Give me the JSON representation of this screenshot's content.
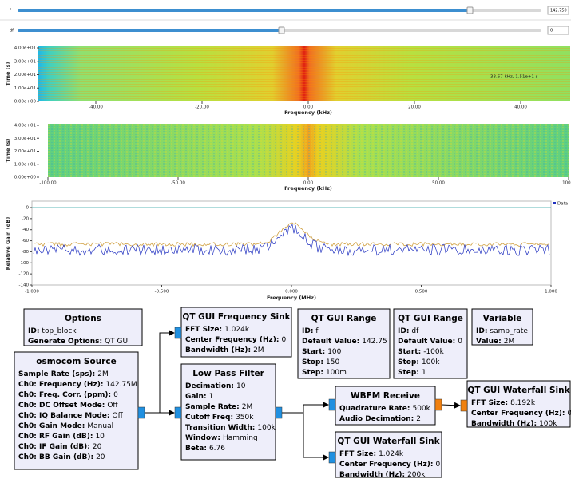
{
  "controls": [
    {
      "label": "f",
      "value": "142.750"
    },
    {
      "label": "df",
      "value": "0"
    }
  ],
  "waterfall_1": {
    "ylabel": "Time (s)",
    "xlabel": "Frequency (kHz)",
    "yticks": [
      "4.00e+01",
      "3.00e+01",
      "2.00e+01",
      "1.00e+01",
      "0.00e+00"
    ],
    "xticks": [
      "-40.00",
      "-20.00",
      "0.00",
      "20.00",
      "40.00"
    ],
    "annotation": "33.67 kHz, 1.51e+1 s"
  },
  "waterfall_2": {
    "ylabel": "Time (s)",
    "xlabel": "Frequency (kHz)",
    "yticks": [
      "4.00e+01",
      "3.00e+01",
      "2.00e+01",
      "1.00e+01",
      "0.00e+00"
    ],
    "xticks": [
      "-100.00",
      "-50.00",
      "0.00",
      "50.00",
      "100.0"
    ]
  },
  "frequency_plot": {
    "ylabel": "Relative Gain (dB)",
    "xlabel": "Frequency (MHz)",
    "yticks": [
      "0",
      "-20",
      "-40",
      "-60",
      "-80",
      "-100",
      "-120",
      "-140"
    ],
    "xticks": [
      "-1.000",
      "-0.500",
      "0.000",
      "0.500",
      "1.000"
    ],
    "legend": "Data"
  },
  "blocks": [
    {
      "title": "Options",
      "params": [
        {
          "key": "ID:",
          "value": "top_block"
        },
        {
          "key": "Generate Options:",
          "value": "QT GUI"
        }
      ]
    },
    {
      "title": "QT GUI Frequency Sink",
      "params": [
        {
          "key": "FFT Size:",
          "value": "1.024k"
        },
        {
          "key": "Center Frequency (Hz):",
          "value": "0"
        },
        {
          "key": "Bandwidth (Hz):",
          "value": "2M"
        }
      ]
    },
    {
      "title": "QT GUI Range",
      "params": [
        {
          "key": "ID:",
          "value": "f"
        },
        {
          "key": "Default Value:",
          "value": "142.75"
        },
        {
          "key": "Start:",
          "value": "100"
        },
        {
          "key": "Stop:",
          "value": "150"
        },
        {
          "key": "Step:",
          "value": "100m"
        }
      ]
    },
    {
      "title": "QT GUI Range",
      "params": [
        {
          "key": "ID:",
          "value": "df"
        },
        {
          "key": "Default Value:",
          "value": "0"
        },
        {
          "key": "Start:",
          "value": "-100k"
        },
        {
          "key": "Stop:",
          "value": "100k"
        },
        {
          "key": "Step:",
          "value": "1"
        }
      ]
    },
    {
      "title": "Variable",
      "params": [
        {
          "key": "ID:",
          "value": "samp_rate"
        },
        {
          "key": "Value:",
          "value": "2M"
        }
      ]
    },
    {
      "title": "osmocom Source",
      "params": [
        {
          "key": "Sample Rate (sps):",
          "value": "2M"
        },
        {
          "key": "Ch0: Frequency (Hz):",
          "value": "142.75M"
        },
        {
          "key": "Ch0: Freq. Corr. (ppm):",
          "value": "0"
        },
        {
          "key": "Ch0: DC Offset Mode:",
          "value": "Off"
        },
        {
          "key": "Ch0: IQ Balance Mode:",
          "value": "Off"
        },
        {
          "key": "Ch0: Gain Mode:",
          "value": "Manual"
        },
        {
          "key": "Ch0: RF Gain (dB):",
          "value": "10"
        },
        {
          "key": "Ch0: IF Gain (dB):",
          "value": "20"
        },
        {
          "key": "Ch0: BB Gain (dB):",
          "value": "20"
        }
      ]
    },
    {
      "title": "Low Pass Filter",
      "params": [
        {
          "key": "Decimation:",
          "value": "10"
        },
        {
          "key": "Gain:",
          "value": "1"
        },
        {
          "key": "Sample Rate:",
          "value": "2M"
        },
        {
          "key": "Cutoff Freq:",
          "value": "350k"
        },
        {
          "key": "Transition Width:",
          "value": "100k"
        },
        {
          "key": "Window:",
          "value": "Hamming"
        },
        {
          "key": "Beta:",
          "value": "6.76"
        }
      ]
    },
    {
      "title": "WBFM Receive",
      "params": [
        {
          "key": "Quadrature Rate:",
          "value": "500k"
        },
        {
          "key": "Audio Decimation:",
          "value": "2"
        }
      ]
    },
    {
      "title": "QT GUI Waterfall Sink",
      "params": [
        {
          "key": "FFT Size:",
          "value": "8.192k"
        },
        {
          "key": "Center Frequency (Hz):",
          "value": "0"
        },
        {
          "key": "Bandwidth (Hz):",
          "value": "100k"
        }
      ]
    },
    {
      "title": "QT GUI Waterfall Sink",
      "params": [
        {
          "key": "FFT Size:",
          "value": "1.024k"
        },
        {
          "key": "Center Frequency (Hz):",
          "value": "0"
        },
        {
          "key": "Bandwidth (Hz):",
          "value": "200k"
        }
      ]
    }
  ]
}
